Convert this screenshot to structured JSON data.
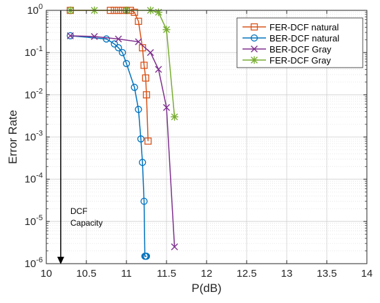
{
  "chart_data": {
    "type": "line",
    "xlabel": "P(dB)",
    "ylabel": "Error Rate",
    "xlim": [
      10,
      14
    ],
    "ylim": [
      1e-06,
      1
    ],
    "y_scale": "log",
    "grid": true,
    "legend_position": "top-right",
    "x_ticks": [
      10,
      10.5,
      11,
      11.5,
      12,
      12.5,
      13,
      13.5,
      14
    ],
    "x_tick_labels": [
      "10",
      "10.5",
      "11",
      "11.5",
      "12",
      "12.5",
      "13",
      "13.5",
      "14"
    ],
    "y_ticks": [
      {
        "value": 1e-06,
        "base": "10",
        "exp": "-6"
      },
      {
        "value": 1e-05,
        "base": "10",
        "exp": "-5"
      },
      {
        "value": 0.0001,
        "base": "10",
        "exp": "-4"
      },
      {
        "value": 0.001,
        "base": "10",
        "exp": "-3"
      },
      {
        "value": 0.01,
        "base": "10",
        "exp": "-2"
      },
      {
        "value": 0.1,
        "base": "10",
        "exp": "-1"
      },
      {
        "value": 1,
        "base": "10",
        "exp": "0"
      }
    ],
    "series": [
      {
        "name": "FER-DCF natural",
        "color": "#d95319",
        "marker": "square",
        "x": [
          10.3,
          10.8,
          10.85,
          10.9,
          10.95,
          11.0,
          11.05,
          11.1,
          11.15,
          11.2,
          11.22,
          11.24,
          11.25,
          11.27
        ],
        "y": [
          1,
          1,
          1,
          1,
          1,
          1,
          1,
          0.9,
          0.55,
          0.13,
          0.05,
          0.025,
          0.01,
          0.0008
        ]
      },
      {
        "name": "BER-DCF natural",
        "color": "#0072bd",
        "marker": "circle",
        "x": [
          10.3,
          10.75,
          10.85,
          10.9,
          10.95,
          11.0,
          11.1,
          11.15,
          11.18,
          11.2,
          11.22,
          11.23,
          11.24,
          11.25
        ],
        "y": [
          0.25,
          0.21,
          0.16,
          0.13,
          0.1,
          0.055,
          0.015,
          0.0045,
          0.0009,
          0.00025,
          3e-05,
          1.5e-06,
          1.5e-06,
          1.5e-06
        ]
      },
      {
        "name": "BER-DCF Gray",
        "color": "#7e2f8e",
        "marker": "x",
        "x": [
          10.3,
          10.6,
          10.9,
          11.15,
          11.3,
          11.4,
          11.5,
          11.6
        ],
        "y": [
          0.25,
          0.24,
          0.21,
          0.18,
          0.1,
          0.04,
          0.005,
          2.5e-06
        ]
      },
      {
        "name": "FER-DCF Gray",
        "color": "#77ac30",
        "marker": "star",
        "x": [
          10.3,
          10.6,
          11.0,
          11.3,
          11.4,
          11.5,
          11.6
        ],
        "y": [
          1,
          1,
          1,
          1,
          0.9,
          0.35,
          0.003
        ]
      }
    ],
    "annotation": {
      "lines": [
        "DCF",
        "Capacity"
      ],
      "arrow_x": 10.18,
      "arrow_y_from": 1,
      "arrow_y_to": 1e-06
    }
  }
}
